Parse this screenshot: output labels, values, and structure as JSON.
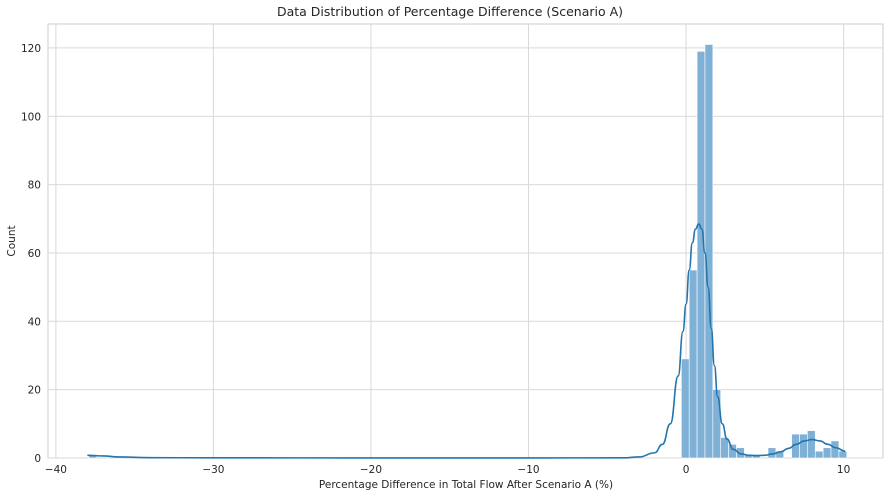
{
  "chart_data": {
    "type": "bar",
    "title": "Data Distribution of Percentage Difference (Scenario A)",
    "xlabel": "Percentage Difference in Total Flow After Scenario A (%)",
    "ylabel": "Count",
    "xlim": [
      -40.5,
      12.5
    ],
    "ylim": [
      0,
      127
    ],
    "xticks": [
      -40,
      -30,
      -20,
      -10,
      0,
      10
    ],
    "xtick_labels": [
      "−40",
      "−30",
      "−20",
      "−10",
      "0",
      "10"
    ],
    "yticks": [
      0,
      20,
      40,
      60,
      80,
      100,
      120
    ],
    "ytick_labels": [
      "0",
      "20",
      "40",
      "60",
      "80",
      "100",
      "120"
    ],
    "grid": true,
    "bar_color": "#7fb0d6",
    "kde_color": "#2475ab",
    "bins": [
      {
        "x0": -37.9,
        "x1": -37.4,
        "count": 1
      },
      {
        "x0": -0.3,
        "x1": 0.2,
        "count": 29
      },
      {
        "x0": 0.2,
        "x1": 0.7,
        "count": 55
      },
      {
        "x0": 0.7,
        "x1": 1.2,
        "count": 119
      },
      {
        "x0": 1.2,
        "x1": 1.7,
        "count": 121
      },
      {
        "x0": 1.7,
        "x1": 2.2,
        "count": 20
      },
      {
        "x0": 2.2,
        "x1": 2.7,
        "count": 6
      },
      {
        "x0": 2.7,
        "x1": 3.2,
        "count": 4
      },
      {
        "x0": 3.2,
        "x1": 3.7,
        "count": 3
      },
      {
        "x0": 3.7,
        "x1": 4.2,
        "count": 1
      },
      {
        "x0": 4.2,
        "x1": 4.7,
        "count": 1
      },
      {
        "x0": 5.2,
        "x1": 5.7,
        "count": 3
      },
      {
        "x0": 5.7,
        "x1": 6.2,
        "count": 2
      },
      {
        "x0": 6.7,
        "x1": 7.2,
        "count": 7
      },
      {
        "x0": 7.2,
        "x1": 7.7,
        "count": 7
      },
      {
        "x0": 7.7,
        "x1": 8.2,
        "count": 8
      },
      {
        "x0": 8.2,
        "x1": 8.7,
        "count": 2
      },
      {
        "x0": 8.7,
        "x1": 9.2,
        "count": 3
      },
      {
        "x0": 9.2,
        "x1": 9.7,
        "count": 5
      },
      {
        "x0": 9.7,
        "x1": 10.2,
        "count": 2
      }
    ],
    "kde": {
      "x": [
        -38,
        -37,
        -36,
        -34,
        -30,
        -20,
        -10,
        -4,
        -3,
        -2,
        -1.5,
        -1,
        -0.5,
        -0.2,
        0,
        0.2,
        0.4,
        0.6,
        0.8,
        1.0,
        1.2,
        1.4,
        1.6,
        1.8,
        2.0,
        2.3,
        2.6,
        3.0,
        3.5,
        4.0,
        4.5,
        5.0,
        5.5,
        6.0,
        6.5,
        7.0,
        7.5,
        8.0,
        8.5,
        9.0,
        9.5,
        10.1
      ],
      "y": [
        0.8,
        0.6,
        0.3,
        0.1,
        0.05,
        0.02,
        0.02,
        0.05,
        0.3,
        1.5,
        4,
        10,
        24,
        37,
        45,
        55,
        63,
        67,
        68.5,
        67,
        60,
        50,
        38,
        27,
        18,
        10,
        5.5,
        2.5,
        1.2,
        0.8,
        0.7,
        0.8,
        1.2,
        1.8,
        2.8,
        4.0,
        5.0,
        5.4,
        5.0,
        4.0,
        3.0,
        2.0
      ]
    }
  }
}
